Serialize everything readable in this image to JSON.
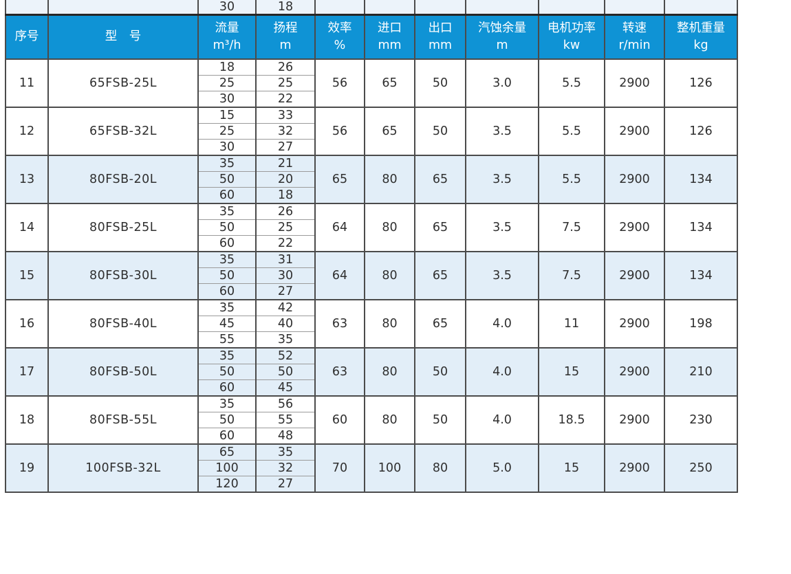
{
  "colors": {
    "header_bg": "#0f93d5",
    "header_text": "#ffffff",
    "stripe_bg": "#e2eef8",
    "partial_row_bg": "#ecf3fa",
    "grid_line": "#4b4b4b",
    "sub_line": "#9b9b9b",
    "text": "#2f2f2f"
  },
  "table": {
    "partial_row": {
      "flow": "30",
      "head": "18"
    },
    "headers": [
      {
        "l1": "序号",
        "l2": ""
      },
      {
        "l1": "型　号",
        "l2": ""
      },
      {
        "l1": "流量",
        "l2": "m³/h"
      },
      {
        "l1": "扬程",
        "l2": "m"
      },
      {
        "l1": "效率",
        "l2": "%"
      },
      {
        "l1": "进口",
        "l2": "mm"
      },
      {
        "l1": "出口",
        "l2": "mm"
      },
      {
        "l1": "汽蚀余量",
        "l2": "m"
      },
      {
        "l1": "电机功率",
        "l2": "kw"
      },
      {
        "l1": "转速",
        "l2": "r/min"
      },
      {
        "l1": "整机重量",
        "l2": "kg"
      }
    ],
    "rows": [
      {
        "no": "11",
        "model": "65FSB-25L",
        "flow": [
          "18",
          "25",
          "30"
        ],
        "head": [
          "26",
          "25",
          "22"
        ],
        "efficiency": "56",
        "inlet": "65",
        "outlet": "50",
        "npsh": "3.0",
        "power": "5.5",
        "speed": "2900",
        "weight": "126",
        "shaded": false
      },
      {
        "no": "12",
        "model": "65FSB-32L",
        "flow": [
          "15",
          "25",
          "30"
        ],
        "head": [
          "33",
          "32",
          "27"
        ],
        "efficiency": "56",
        "inlet": "65",
        "outlet": "50",
        "npsh": "3.5",
        "power": "5.5",
        "speed": "2900",
        "weight": "126",
        "shaded": false
      },
      {
        "no": "13",
        "model": "80FSB-20L",
        "flow": [
          "35",
          "50",
          "60"
        ],
        "head": [
          "21",
          "20",
          "18"
        ],
        "efficiency": "65",
        "inlet": "80",
        "outlet": "65",
        "npsh": "3.5",
        "power": "5.5",
        "speed": "2900",
        "weight": "134",
        "shaded": true
      },
      {
        "no": "14",
        "model": "80FSB-25L",
        "flow": [
          "35",
          "50",
          "60"
        ],
        "head": [
          "26",
          "25",
          "22"
        ],
        "efficiency": "64",
        "inlet": "80",
        "outlet": "65",
        "npsh": "3.5",
        "power": "7.5",
        "speed": "2900",
        "weight": "134",
        "shaded": false
      },
      {
        "no": "15",
        "model": "80FSB-30L",
        "flow": [
          "35",
          "50",
          "60"
        ],
        "head": [
          "31",
          "30",
          "27"
        ],
        "efficiency": "64",
        "inlet": "80",
        "outlet": "65",
        "npsh": "3.5",
        "power": "7.5",
        "speed": "2900",
        "weight": "134",
        "shaded": true
      },
      {
        "no": "16",
        "model": "80FSB-40L",
        "flow": [
          "35",
          "45",
          "55"
        ],
        "head": [
          "42",
          "40",
          "35"
        ],
        "efficiency": "63",
        "inlet": "80",
        "outlet": "65",
        "npsh": "4.0",
        "power": "11",
        "speed": "2900",
        "weight": "198",
        "shaded": false
      },
      {
        "no": "17",
        "model": "80FSB-50L",
        "flow": [
          "35",
          "50",
          "60"
        ],
        "head": [
          "52",
          "50",
          "45"
        ],
        "efficiency": "63",
        "inlet": "80",
        "outlet": "50",
        "npsh": "4.0",
        "power": "15",
        "speed": "2900",
        "weight": "210",
        "shaded": true
      },
      {
        "no": "18",
        "model": "80FSB-55L",
        "flow": [
          "35",
          "50",
          "60"
        ],
        "head": [
          "56",
          "55",
          "48"
        ],
        "efficiency": "60",
        "inlet": "80",
        "outlet": "50",
        "npsh": "4.0",
        "power": "18.5",
        "speed": "2900",
        "weight": "230",
        "shaded": false
      },
      {
        "no": "19",
        "model": "100FSB-32L",
        "flow": [
          "65",
          "100",
          "120"
        ],
        "head": [
          "35",
          "32",
          "27"
        ],
        "efficiency": "70",
        "inlet": "100",
        "outlet": "80",
        "npsh": "5.0",
        "power": "15",
        "speed": "2900",
        "weight": "250",
        "shaded": true
      }
    ]
  }
}
